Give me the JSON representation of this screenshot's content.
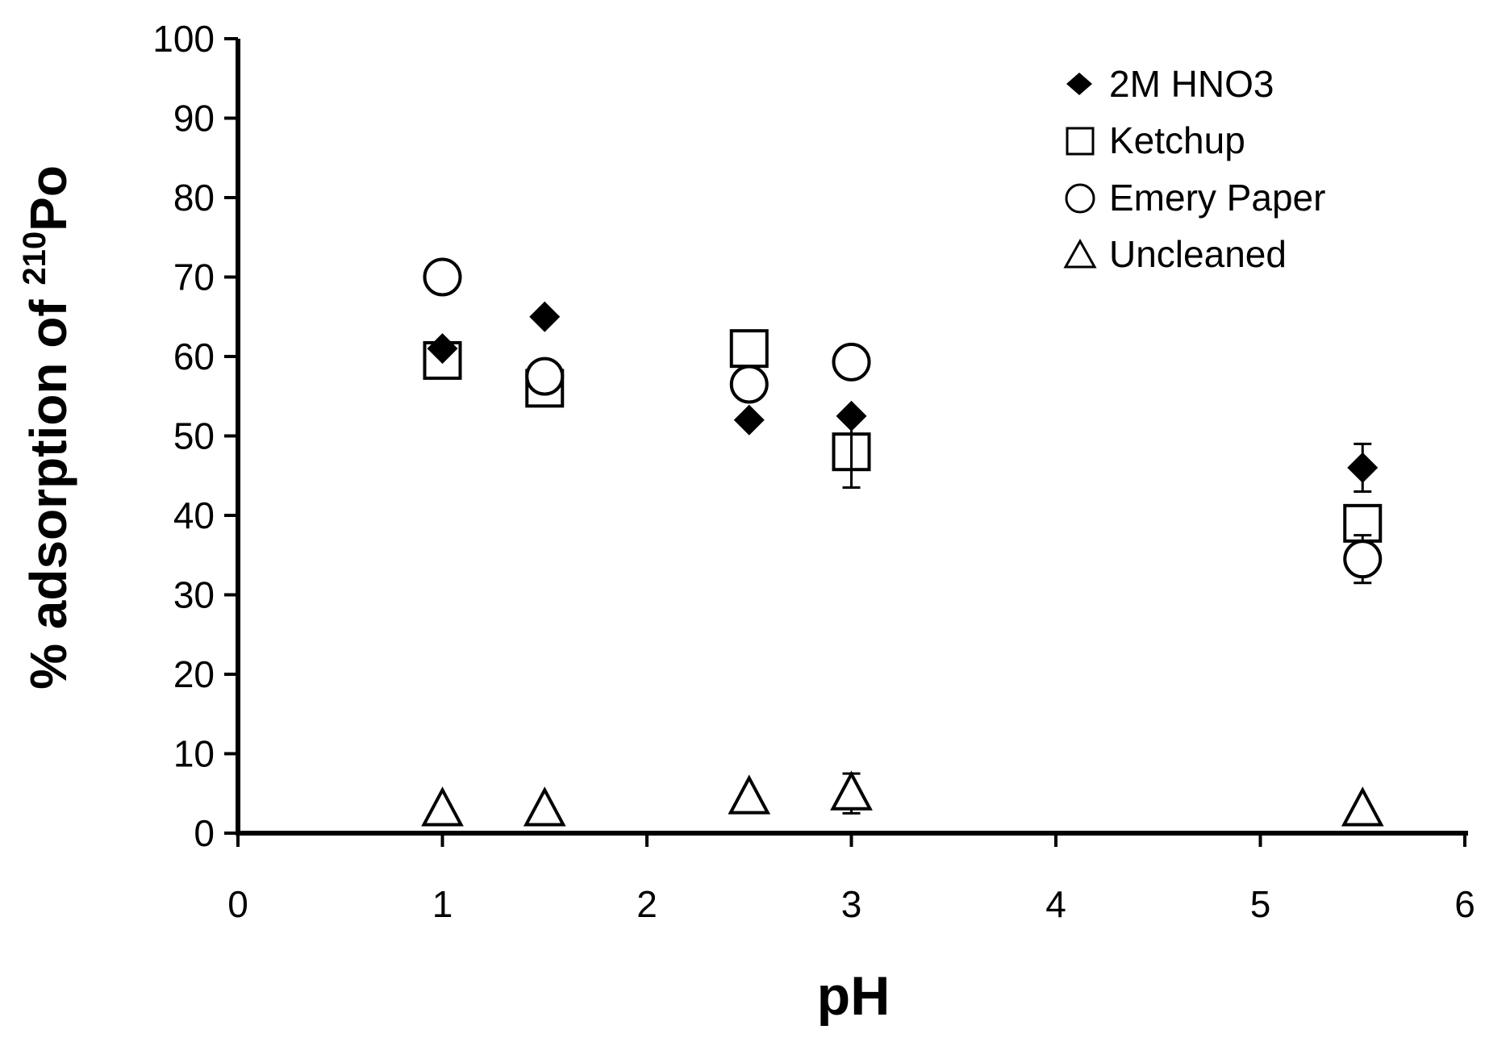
{
  "chart_data": {
    "type": "scatter",
    "xlabel": "pH",
    "ylabel_main": "% adsorption of ",
    "ylabel_superscript": "210",
    "ylabel_element": "Po",
    "xlim": [
      0,
      6
    ],
    "ylim": [
      0,
      100
    ],
    "xticks": [
      0,
      1,
      2,
      3,
      4,
      5,
      6
    ],
    "yticks": [
      0,
      10,
      20,
      30,
      40,
      50,
      60,
      70,
      80,
      90,
      100
    ],
    "grid": false,
    "legend_position": "top-right",
    "series": [
      {
        "name": "2M HNO3",
        "marker": "filled-diamond",
        "points": [
          {
            "x": 1.0,
            "y": 61,
            "err": 0
          },
          {
            "x": 1.5,
            "y": 65,
            "err": 0
          },
          {
            "x": 2.5,
            "y": 52,
            "err": 0
          },
          {
            "x": 3.0,
            "y": 52.5,
            "err": 0
          },
          {
            "x": 5.5,
            "y": 46,
            "err": 3
          }
        ]
      },
      {
        "name": "Ketchup",
        "marker": "open-square",
        "points": [
          {
            "x": 1.0,
            "y": 59.5,
            "err": 0
          },
          {
            "x": 1.5,
            "y": 56,
            "err": 0
          },
          {
            "x": 2.5,
            "y": 61,
            "err": 0
          },
          {
            "x": 3.0,
            "y": 48,
            "err": 4.5
          },
          {
            "x": 5.5,
            "y": 39,
            "err": 0
          }
        ]
      },
      {
        "name": "Emery Paper",
        "marker": "open-circle",
        "points": [
          {
            "x": 1.0,
            "y": 70,
            "err": 0
          },
          {
            "x": 1.5,
            "y": 57.5,
            "err": 0
          },
          {
            "x": 2.5,
            "y": 56.5,
            "err": 0
          },
          {
            "x": 3.0,
            "y": 59.3,
            "err": 0
          },
          {
            "x": 5.5,
            "y": 34.5,
            "err": 3
          }
        ]
      },
      {
        "name": "Uncleaned",
        "marker": "open-triangle",
        "points": [
          {
            "x": 1.0,
            "y": 3,
            "err": 0
          },
          {
            "x": 1.5,
            "y": 3,
            "err": 0
          },
          {
            "x": 2.5,
            "y": 4.5,
            "err": 0
          },
          {
            "x": 3.0,
            "y": 5,
            "err": 2.5
          },
          {
            "x": 5.5,
            "y": 3,
            "err": 0
          }
        ]
      }
    ]
  }
}
